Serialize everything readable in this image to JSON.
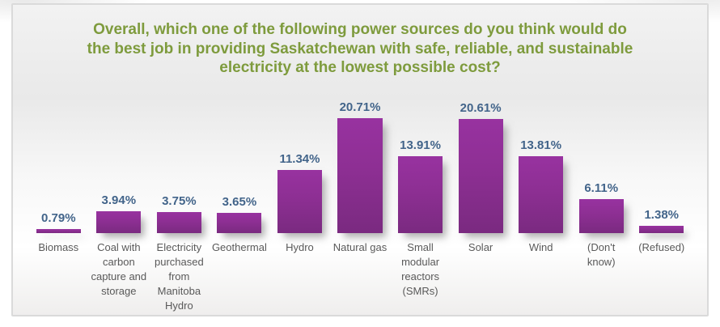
{
  "chart_data": {
    "type": "bar",
    "title": "Overall, which one of the following power sources do you think would do the best job in providing Saskatchewan with safe, reliable, and sustainable electricity at the lowest possible cost?",
    "categories": [
      "Biomass",
      "Coal with carbon capture and storage",
      "Electricity purchased from Manitoba Hydro",
      "Geothermal",
      "Hydro",
      "Natural gas",
      "Small modular reactors (SMRs)",
      "Solar",
      "Wind",
      "(Don't know)",
      "(Refused)"
    ],
    "values": [
      0.79,
      3.94,
      3.75,
      3.65,
      11.34,
      20.71,
      13.91,
      20.61,
      13.81,
      6.11,
      1.38
    ],
    "value_labels": [
      "0.79%",
      "3.94%",
      "3.75%",
      "3.65%",
      "11.34%",
      "20.71%",
      "13.91%",
      "20.61%",
      "13.81%",
      "6.11%",
      "1.38%"
    ],
    "xlabel": "",
    "ylabel": "",
    "unit": "%",
    "axes_visible": false,
    "gridlines": false,
    "legend": "none",
    "data_labels_position": "above-bars",
    "colors": {
      "title_text": "#7e9b3d",
      "bar_top": "#9832a0",
      "bar_bottom": "#7a2a80",
      "value_label_text": "#42648a",
      "category_label_text": "#595959",
      "frame_border": "#dadada"
    }
  }
}
